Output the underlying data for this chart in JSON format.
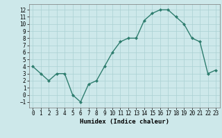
{
  "x": [
    0,
    1,
    2,
    3,
    4,
    5,
    6,
    7,
    8,
    9,
    10,
    11,
    12,
    13,
    14,
    15,
    16,
    17,
    18,
    19,
    20,
    21,
    22,
    23
  ],
  "y": [
    4,
    3,
    2,
    3,
    3,
    0,
    -1,
    1.5,
    2,
    4,
    6,
    7.5,
    8,
    8,
    10.5,
    11.5,
    12,
    12,
    11,
    10,
    8,
    7.5,
    3,
    3.5
  ],
  "line_color": "#2e7d6e",
  "marker": "D",
  "marker_size": 2.0,
  "background_color": "#cde8ea",
  "grid_color": "#aad0d3",
  "xlabel": "Humidex (Indice chaleur)",
  "xlim": [
    -0.5,
    23.5
  ],
  "ylim": [
    -1.8,
    12.8
  ],
  "yticks": [
    -1,
    0,
    1,
    2,
    3,
    4,
    5,
    6,
    7,
    8,
    9,
    10,
    11,
    12
  ],
  "xticks": [
    0,
    1,
    2,
    3,
    4,
    5,
    6,
    7,
    8,
    9,
    10,
    11,
    12,
    13,
    14,
    15,
    16,
    17,
    18,
    19,
    20,
    21,
    22,
    23
  ],
  "tick_fontsize": 5.5,
  "xlabel_fontsize": 6.5,
  "line_width": 1.0
}
